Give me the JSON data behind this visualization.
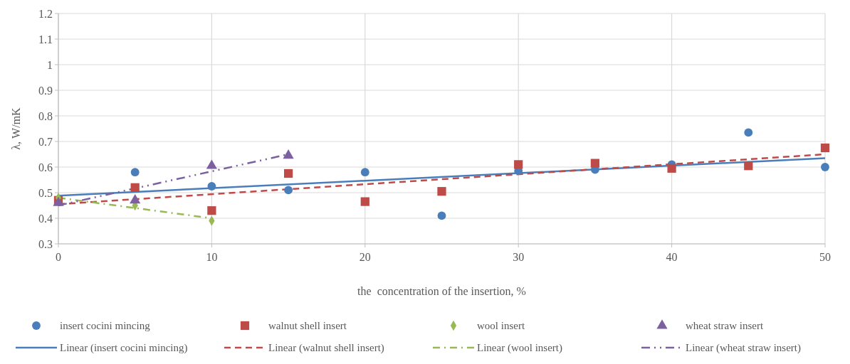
{
  "chart_data": {
    "type": "scatter",
    "xlabel": "the  concentration of the insertion, %",
    "ylabel": "λ, W/mK",
    "xlim": [
      0,
      50
    ],
    "xticks": [
      0,
      10,
      20,
      30,
      40,
      50
    ],
    "ylim": [
      0.3,
      1.2
    ],
    "yticks": [
      0.3,
      0.4,
      0.5,
      0.6,
      0.7,
      0.8,
      0.9,
      {
        "value": 1,
        "label": "1"
      },
      1.1,
      1.2
    ],
    "grid": true,
    "legend": "bottom",
    "series": [
      {
        "name": "insert cocini mincing",
        "marker": "circle",
        "color": "#4a7ebb",
        "x": [
          5,
          10,
          15,
          20,
          25,
          30,
          35,
          40,
          45,
          50
        ],
        "values": [
          0.58,
          0.525,
          0.51,
          0.58,
          0.41,
          0.585,
          0.59,
          0.61,
          0.735,
          0.6
        ]
      },
      {
        "name": "walnut shell insert",
        "marker": "square",
        "color": "#be4b48",
        "x": [
          0,
          5,
          10,
          15,
          20,
          25,
          30,
          35,
          40,
          45,
          50
        ],
        "values": [
          0.47,
          0.52,
          0.43,
          0.575,
          0.465,
          0.505,
          0.61,
          0.615,
          0.595,
          0.605,
          0.675
        ]
      },
      {
        "name": "wool insert",
        "marker": "diamond",
        "color": "#98b954",
        "x": [
          0,
          5,
          10
        ],
        "values": [
          0.48,
          0.45,
          0.39
        ]
      },
      {
        "name": "wheat straw insert",
        "marker": "triangle",
        "color": "#7d60a0",
        "x": [
          0,
          5,
          10,
          15
        ],
        "values": [
          0.46,
          0.47,
          0.605,
          0.645
        ]
      },
      {
        "name": "Linear (insert cocini mincing)",
        "type": "line",
        "line_style": "solid",
        "color": "#4a7ebb",
        "x": [
          0,
          50
        ],
        "values": [
          0.488,
          0.635
        ]
      },
      {
        "name": "Linear (walnut shell insert)",
        "type": "line",
        "line_style": "dashed",
        "color": "#be4b48",
        "x": [
          0,
          50
        ],
        "values": [
          0.455,
          0.65
        ]
      },
      {
        "name": "Linear (wool insert)",
        "type": "line",
        "line_style": "dashdot",
        "color": "#98b954",
        "x": [
          0,
          10
        ],
        "values": [
          0.48,
          0.4
        ]
      },
      {
        "name": "Linear (wheat straw insert)",
        "type": "line",
        "line_style": "dashdotdot",
        "color": "#7d60a0",
        "x": [
          0,
          15
        ],
        "values": [
          0.45,
          0.65
        ]
      }
    ]
  }
}
